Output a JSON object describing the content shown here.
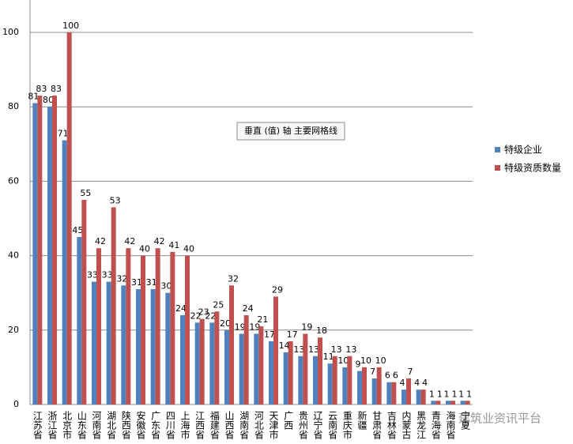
{
  "chart_data": {
    "type": "bar",
    "categories": [
      "江苏省",
      "浙江省",
      "北京市",
      "山东省",
      "河南省",
      "湖北省",
      "陕西省",
      "安徽省",
      "广东省",
      "四川省",
      "上海市",
      "江西省",
      "福建省",
      "山西省",
      "湖南省",
      "河北省",
      "天津市",
      "广西",
      "贵州省",
      "辽宁省",
      "云南省",
      "重庆市",
      "新疆",
      "甘肃省",
      "吉林省",
      "内蒙古",
      "黑龙江",
      "青海省",
      "海南省",
      "宁夏"
    ],
    "series": [
      {
        "name": "特级企业",
        "color": "#4f81bd",
        "values": [
          81,
          80,
          71,
          45,
          33,
          33,
          32,
          31,
          31,
          30,
          24,
          22,
          22,
          20,
          19,
          19,
          17,
          14,
          13,
          13,
          11,
          10,
          9,
          7,
          6,
          4,
          4,
          1,
          1,
          1
        ]
      },
      {
        "name": "特级资质数量",
        "color": "#c0504d",
        "values": [
          83,
          83,
          100,
          55,
          42,
          53,
          42,
          40,
          42,
          41,
          40,
          23,
          25,
          32,
          24,
          21,
          29,
          17,
          19,
          18,
          13,
          13,
          10,
          10,
          6,
          7,
          4,
          1,
          1,
          1
        ]
      }
    ],
    "ylim": [
      0,
      100
    ],
    "yticks": [
      0,
      20,
      40,
      60,
      80,
      100
    ],
    "grid": true,
    "legend": "right",
    "tooltip": "垂直 (值) 轴 主要网格线",
    "watermark": "建筑业资讯平台"
  }
}
